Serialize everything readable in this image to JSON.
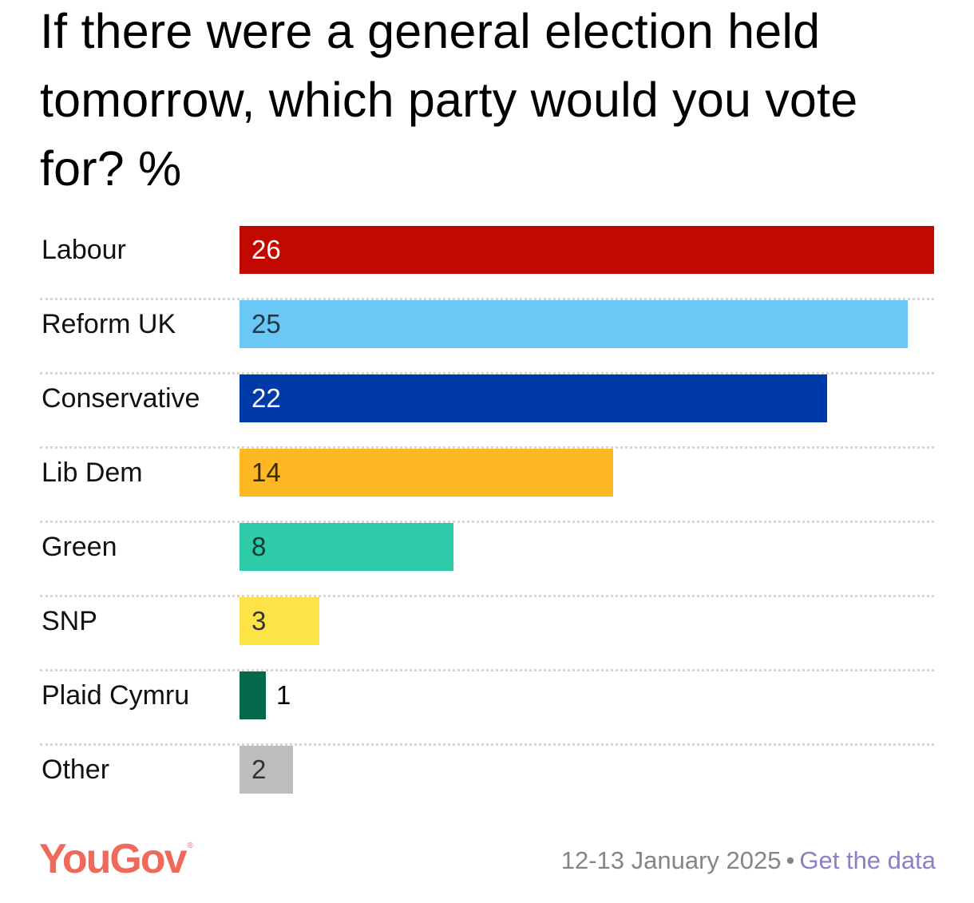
{
  "title": "If there were a general election held tomorrow, which party would you vote for? %",
  "chart_data": {
    "type": "bar",
    "orientation": "horizontal",
    "title": "If there were a general election held tomorrow, which party would you vote for? %",
    "categories": [
      "Labour",
      "Reform UK",
      "Conservative",
      "Lib Dem",
      "Green",
      "SNP",
      "Plaid Cymru",
      "Other"
    ],
    "values": [
      26,
      25,
      22,
      14,
      8,
      3,
      1,
      2
    ],
    "colors": [
      "#c10901",
      "#6bc8f4",
      "#0039a8",
      "#fdb824",
      "#2fcaa8",
      "#fee347",
      "#03694a",
      "#bdbdbd"
    ],
    "label_colors": [
      "#ffffff",
      "#1d3a4a",
      "#ffffff",
      "#3a2a00",
      "#0f3a2e",
      "#333333",
      "#000000",
      "#333333"
    ],
    "xlabel": "",
    "ylabel": "",
    "xlim": [
      0,
      26
    ],
    "grid": false,
    "legend": "none"
  },
  "rows": [
    {
      "label": "Labour",
      "value": "26"
    },
    {
      "label": "Reform UK",
      "value": "25"
    },
    {
      "label": "Conservative",
      "value": "22"
    },
    {
      "label": "Lib Dem",
      "value": "14"
    },
    {
      "label": "Green",
      "value": "8"
    },
    {
      "label": "SNP",
      "value": "3"
    },
    {
      "label": "Plaid Cymru",
      "value": "1"
    },
    {
      "label": "Other",
      "value": "2"
    }
  ],
  "footer": {
    "logo": "YouGov",
    "logo_mark": "®",
    "date": "12-13 January 2025",
    "separator": "•",
    "link": "Get the data"
  },
  "colors": {
    "brand": "#ef6a5b",
    "link": "#8a7fc8",
    "meta_text": "#858585"
  }
}
